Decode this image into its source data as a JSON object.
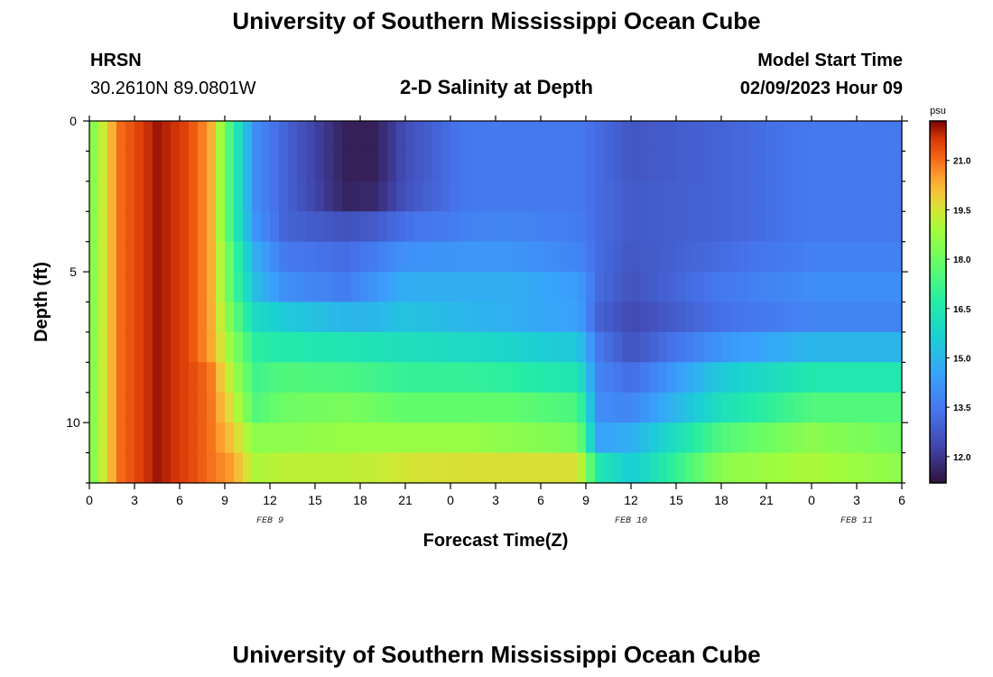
{
  "header": {
    "title": "University of Southern Mississippi Ocean Cube",
    "station": "HRSN",
    "coords": "30.2610N  89.0801W",
    "plot_title": "2-D Salinity at Depth",
    "model_start_label": "Model Start Time",
    "model_start_value": "02/09/2023 Hour 09"
  },
  "footer": {
    "title": "University of Southern Mississippi Ocean Cube"
  },
  "chart_data": {
    "type": "heatmap",
    "title": "2-D Salinity at Depth",
    "xlabel": "Forecast Time(Z)",
    "ylabel": "Depth (ft)",
    "x_ticks": [
      "0",
      "3",
      "6",
      "9",
      "12",
      "15",
      "18",
      "21",
      "0",
      "3",
      "6",
      "9",
      "12",
      "15",
      "18",
      "21",
      "0",
      "3",
      "6"
    ],
    "x_hours": [
      0,
      3,
      6,
      9,
      12,
      15,
      18,
      21,
      24,
      27,
      30,
      33,
      36,
      39,
      42,
      45,
      48,
      51,
      54
    ],
    "x_range_hours": [
      0,
      54
    ],
    "date_labels": [
      {
        "text": "FEB 9",
        "hour": 12
      },
      {
        "text": "FEB 10",
        "hour": 36
      },
      {
        "text": "FEB 11",
        "hour": 51
      }
    ],
    "y_ticks": [
      "0",
      "5",
      "10"
    ],
    "y_tick_values": [
      0,
      5,
      10
    ],
    "y_range_ft": [
      0,
      12
    ],
    "depth_layers_ft": [
      0.5,
      1.5,
      2.5,
      3.5,
      4.5,
      5.5,
      6.5,
      7.5,
      8.5,
      9.5,
      10.5,
      11.5
    ],
    "colorbar": {
      "unit": "psu",
      "ticks": [
        "12.0",
        "13.5",
        "15.0",
        "16.5",
        "18.0",
        "19.5",
        "21.0"
      ],
      "tick_values": [
        12.0,
        13.5,
        15.0,
        16.5,
        18.0,
        19.5,
        21.0
      ],
      "range": [
        11.2,
        22.2
      ],
      "colormap": "turbo"
    },
    "grid": false,
    "legend": "colorbar-right",
    "salinity_psu": [
      [
        18.0,
        21.0,
        22.0,
        21.5,
        20.5,
        17.0,
        14.0,
        13.0,
        11.5,
        11.5,
        12.5,
        13.5,
        13.5,
        13.5,
        13.5,
        13.2,
        12.7,
        13.0,
        13.5,
        13.5
      ],
      [
        18.0,
        21.0,
        22.0,
        21.5,
        20.5,
        17.0,
        14.0,
        13.0,
        11.5,
        11.5,
        12.5,
        13.5,
        13.5,
        13.5,
        13.5,
        13.2,
        12.7,
        13.0,
        13.5,
        13.5
      ],
      [
        18.0,
        21.0,
        22.0,
        21.5,
        20.5,
        17.0,
        14.0,
        13.0,
        11.6,
        11.7,
        12.6,
        13.5,
        13.5,
        13.5,
        13.5,
        13.2,
        12.8,
        13.0,
        13.5,
        13.5
      ],
      [
        18.0,
        21.0,
        22.0,
        21.5,
        20.5,
        17.0,
        14.2,
        13.0,
        12.6,
        12.8,
        13.3,
        13.7,
        13.8,
        13.7,
        13.6,
        13.2,
        12.8,
        13.0,
        13.5,
        13.5
      ],
      [
        18.0,
        21.0,
        22.0,
        21.5,
        20.5,
        17.5,
        14.8,
        13.5,
        13.2,
        13.6,
        14.1,
        14.2,
        14.2,
        14.0,
        13.8,
        13.2,
        12.7,
        13.2,
        13.7,
        13.7
      ],
      [
        18.0,
        21.0,
        22.0,
        21.5,
        20.5,
        17.5,
        15.2,
        14.0,
        13.6,
        14.2,
        14.8,
        14.8,
        14.8,
        14.6,
        14.4,
        13.2,
        12.6,
        13.5,
        14.0,
        14.0
      ],
      [
        18.0,
        21.0,
        22.0,
        21.5,
        20.5,
        18.0,
        16.0,
        15.5,
        15.0,
        15.0,
        15.3,
        15.0,
        14.8,
        14.6,
        14.5,
        13.0,
        12.4,
        13.3,
        13.8,
        13.8
      ],
      [
        18.0,
        21.0,
        22.0,
        21.5,
        20.5,
        18.5,
        16.8,
        16.6,
        16.4,
        16.3,
        16.2,
        16.0,
        15.8,
        15.6,
        15.4,
        13.5,
        12.6,
        14.2,
        15.0,
        15.0
      ],
      [
        18.0,
        21.0,
        22.0,
        21.5,
        21.0,
        19.0,
        17.2,
        17.5,
        17.4,
        17.2,
        17.0,
        17.0,
        16.8,
        16.6,
        16.4,
        13.8,
        13.2,
        15.5,
        16.5,
        16.5
      ],
      [
        18.0,
        21.0,
        22.0,
        21.5,
        21.0,
        19.5,
        17.5,
        18.0,
        18.2,
        18.0,
        17.8,
        17.8,
        17.8,
        17.6,
        17.4,
        14.0,
        13.8,
        16.2,
        17.5,
        17.5
      ],
      [
        18.0,
        21.0,
        22.0,
        21.5,
        21.0,
        20.0,
        18.5,
        18.5,
        18.7,
        18.7,
        18.7,
        18.7,
        18.5,
        18.4,
        18.2,
        14.5,
        14.8,
        17.5,
        18.5,
        18.0
      ],
      [
        18.0,
        21.0,
        22.0,
        21.5,
        21.0,
        20.5,
        19.0,
        19.2,
        19.2,
        19.3,
        19.5,
        19.6,
        19.6,
        19.6,
        19.6,
        16.5,
        15.5,
        18.5,
        19.0,
        18.5
      ]
    ],
    "salinity_time_hours": [
      0,
      2,
      4.5,
      6.5,
      8,
      9.5,
      11,
      13,
      17,
      19,
      21,
      25,
      28,
      30,
      32.5,
      33.8,
      36,
      42,
      48,
      54
    ]
  }
}
